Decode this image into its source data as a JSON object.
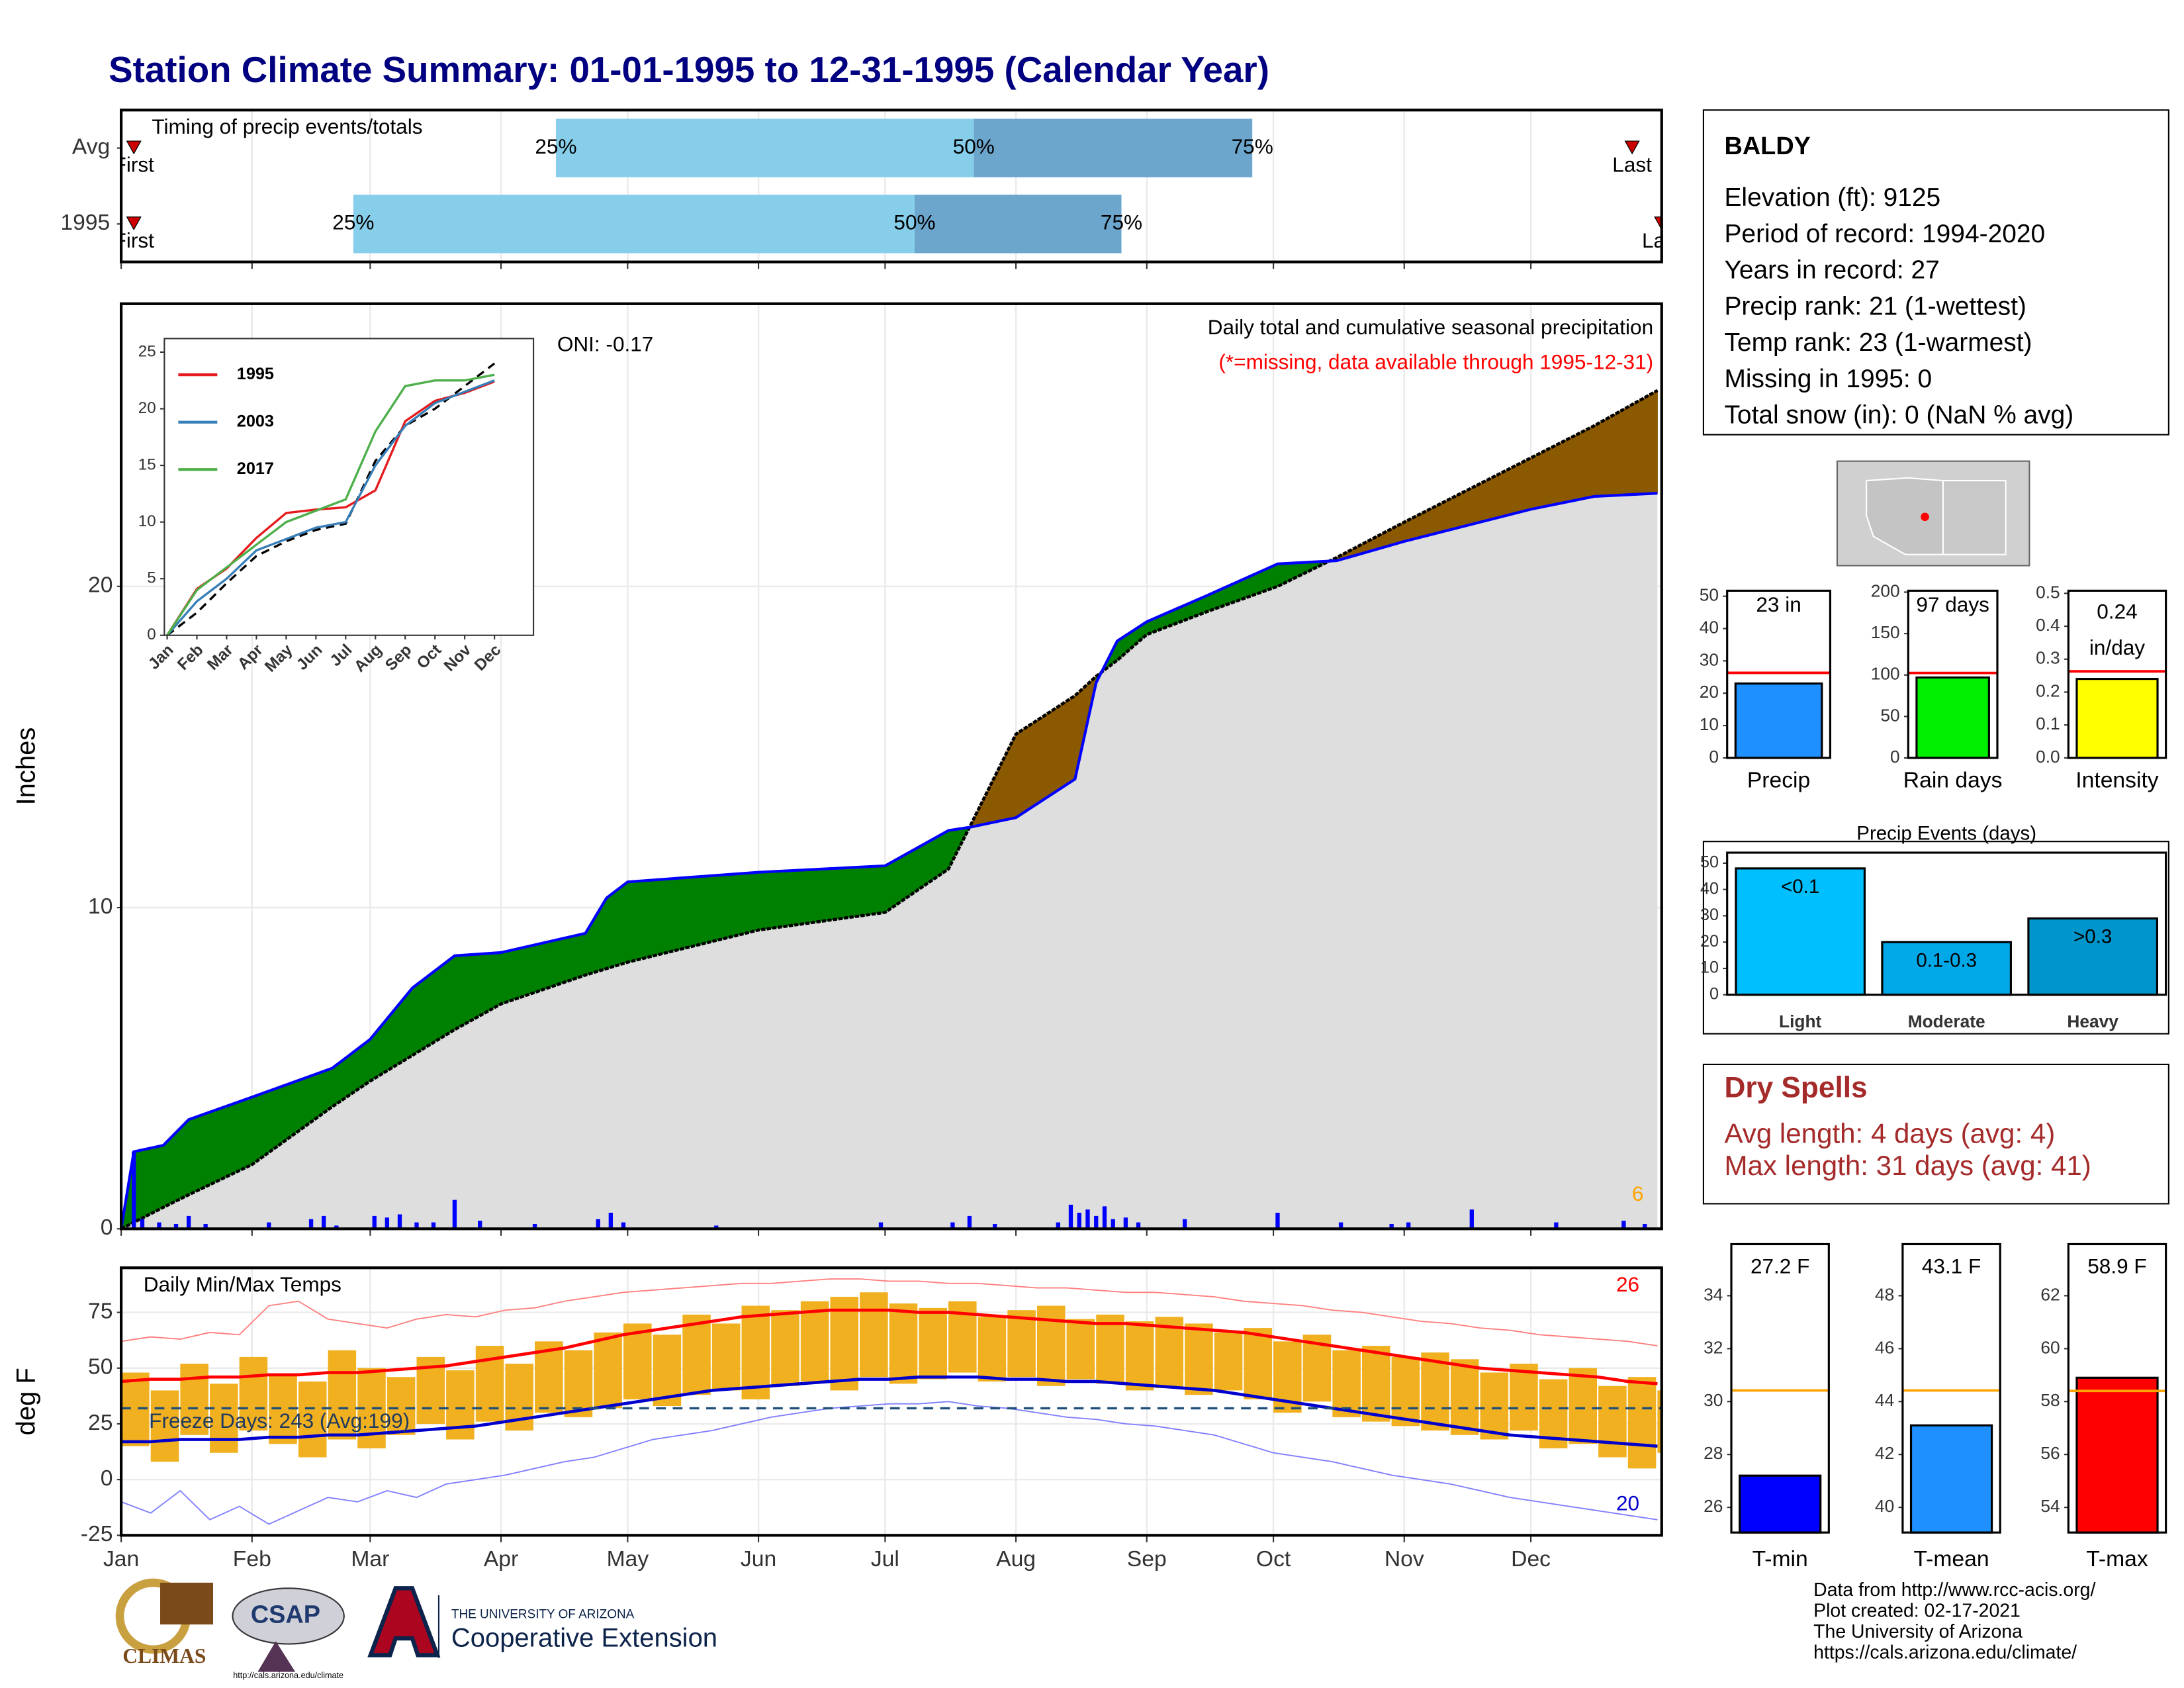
{
  "title": "Station Climate Summary: 01-01-1995 to 12-31-1995 (Calendar Year)",
  "station": {
    "name": "BALDY",
    "lines": [
      "Elevation (ft): 9125",
      "Period of record: 1994-2020",
      "Years in record: 27",
      "Precip rank: 21 (1-wettest)",
      "Temp rank: 23 (1-warmest)",
      "Missing in 1995: 0",
      "Total snow (in): 0 (NaN % avg)"
    ]
  },
  "dry_spells": {
    "title": "Dry Spells",
    "lines": [
      "Avg length: 4 days (avg: 4)",
      "Max length: 31 days (avg: 41)"
    ]
  },
  "credits": [
    "Data from http://www.rcc-acis.org/",
    "Plot created: 02-17-2021",
    "The University of Arizona",
    "https://cals.arizona.edu/climate/"
  ],
  "logos": {
    "climas": "CLIMAS",
    "csap": "CSAP",
    "csap_url": "http://cals.arizona.edu/climate",
    "university": "THE UNIVERSITY OF ARIZONA",
    "extension": "Cooperative Extension"
  },
  "chart_data": [
    {
      "type": "timeline",
      "title": "Timing of precip events/totals",
      "categories": [
        "Avg",
        "1995"
      ],
      "series": [
        {
          "name": "25%",
          "values": [
            103,
            55
          ]
        },
        {
          "name": "50%",
          "values": [
            202,
            188
          ]
        },
        {
          "name": "75%",
          "values": [
            268,
            237
          ]
        }
      ],
      "segment_colors": [
        "#87ceeb",
        "#6ca6cd"
      ],
      "first": [
        3,
        3
      ],
      "last": [
        358,
        365
      ],
      "first_label": "First",
      "last_label": "Last",
      "marker_color": "#cc0000",
      "xlim": [
        0,
        365
      ],
      "xticks": [
        0,
        31,
        59,
        90,
        120,
        151,
        181,
        212,
        243,
        273,
        304,
        334
      ]
    },
    {
      "type": "area",
      "title": "Daily total and cumulative seasonal precipitation",
      "subtitle": "(*=missing, data available through 1995-12-31)",
      "annotation": "ONI: -0.17",
      "corner_note": "6",
      "ylabel": "Inches",
      "x": [
        0,
        3,
        10,
        16,
        31,
        50,
        59,
        69,
        79,
        90,
        110,
        115,
        120,
        151,
        181,
        196,
        201,
        212,
        226,
        231,
        236,
        243,
        257,
        274,
        288,
        304,
        319,
        334,
        349,
        364
      ],
      "average": [
        0,
        0.2,
        0.67,
        1.06,
        2.0,
        3.8,
        4.6,
        5.4,
        6.2,
        7.0,
        7.9,
        8.1,
        8.3,
        9.3,
        9.85,
        11.2,
        12.5,
        15.4,
        16.6,
        17.2,
        17.7,
        18.5,
        19.2,
        20.0,
        20.9,
        22.0,
        23.0,
        24.0,
        25.0,
        26.1
      ],
      "observed": [
        0,
        2.4,
        2.6,
        3.4,
        4.1,
        5.0,
        5.9,
        7.5,
        8.5,
        8.6,
        9.2,
        10.3,
        10.8,
        11.1,
        11.3,
        12.4,
        12.5,
        12.8,
        14.0,
        17.0,
        18.3,
        18.9,
        19.7,
        20.7,
        20.8,
        21.4,
        21.9,
        22.4,
        22.8,
        22.9
      ],
      "daily_x": [
        3,
        5,
        9,
        13,
        16,
        20,
        35,
        45,
        48,
        51,
        60,
        63,
        66,
        70,
        74,
        79,
        85,
        98,
        113,
        116,
        119,
        141,
        180,
        197,
        201,
        207,
        222,
        225,
        227,
        229,
        231,
        233,
        235,
        238,
        241,
        252,
        274,
        289,
        301,
        305,
        320,
        340,
        356,
        361
      ],
      "daily": [
        2.4,
        0.3,
        0.2,
        0.15,
        0.4,
        0.15,
        0.2,
        0.3,
        0.4,
        0.1,
        0.4,
        0.35,
        0.45,
        0.2,
        0.2,
        0.9,
        0.25,
        0.15,
        0.3,
        0.5,
        0.2,
        0.1,
        0.2,
        0.2,
        0.4,
        0.15,
        0.2,
        0.75,
        0.5,
        0.6,
        0.4,
        0.7,
        0.3,
        0.35,
        0.2,
        0.3,
        0.5,
        0.2,
        0.15,
        0.2,
        0.6,
        0.2,
        0.25,
        0.15
      ],
      "average_fill": "#dedede",
      "above_color": "#008000",
      "below_color": "#8b5a00",
      "observed_color": "#0000ff",
      "daily_color": "#0000ff",
      "note_color": "#ffa500",
      "subtitle_color": "#ff0000",
      "xlim": [
        0,
        365
      ],
      "xticks": [
        0,
        31,
        59,
        90,
        120,
        151,
        181,
        212,
        243,
        273,
        304,
        334
      ],
      "ylim": [
        0,
        28.8
      ],
      "yticks": [
        0,
        10,
        20
      ],
      "grid": true
    },
    {
      "type": "line",
      "categories": [
        "Jan",
        "Feb",
        "Mar",
        "Apr",
        "May",
        "Jun",
        "Jul",
        "Aug",
        "Sep",
        "Oct",
        "Nov",
        "Dec"
      ],
      "series": [
        {
          "name": "1995",
          "color": "#e41a1c",
          "values": [
            0,
            4.1,
            5.9,
            8.6,
            10.8,
            11.1,
            11.3,
            12.8,
            18.9,
            20.7,
            21.4,
            22.4
          ]
        },
        {
          "name": "2003",
          "color": "#377eb8",
          "values": [
            0,
            3,
            5,
            7.5,
            8.5,
            9.5,
            10,
            15,
            18.5,
            20.5,
            21.5,
            22.5
          ]
        },
        {
          "name": "2017",
          "color": "#4daf4a",
          "values": [
            0,
            4,
            6,
            8,
            10,
            11,
            12,
            18,
            22,
            22.5,
            22.5,
            23
          ]
        }
      ],
      "average": [
        0,
        2,
        4.6,
        7,
        8.3,
        9.3,
        9.85,
        15.4,
        18.5,
        20,
        22,
        24
      ],
      "ylim": [
        0,
        26.2
      ],
      "yticks": [
        0,
        5,
        10,
        15,
        20,
        25
      ]
    },
    {
      "type": "bar",
      "categories": [
        "Precip"
      ],
      "values": [
        23
      ],
      "value_labels": [
        "23 in"
      ],
      "colors": [
        "#1e90ff"
      ],
      "avg": 26.3,
      "avg_color": "#ff0000",
      "ylim": [
        0,
        51.7
      ],
      "yticks": [
        0,
        10,
        20,
        30,
        40,
        50
      ]
    },
    {
      "type": "bar",
      "categories": [
        "Rain days"
      ],
      "values": [
        97
      ],
      "value_labels": [
        "97 days"
      ],
      "colors": [
        "#00ee00"
      ],
      "avg": 102.5,
      "avg_color": "#ff0000",
      "ylim": [
        0,
        201.7
      ],
      "yticks": [
        0,
        50,
        100,
        150,
        200
      ]
    },
    {
      "type": "bar",
      "categories": [
        "Intensity"
      ],
      "values": [
        0.24
      ],
      "value_labels": [
        "0.24"
      ],
      "unit": "in/day",
      "colors": [
        "#ffff00"
      ],
      "avg": 0.263,
      "avg_color": "#ff0000",
      "ylim": [
        0,
        0.508
      ],
      "yticks": [
        {
          "value": 0,
          "label": "0.0"
        },
        0.1,
        0.2,
        0.3,
        0.4,
        0.5
      ]
    },
    {
      "type": "bar",
      "title": "Precip Events (days)",
      "categories": [
        "Light",
        "Moderate",
        "Heavy"
      ],
      "values": [
        48,
        20,
        29
      ],
      "bin_labels": [
        "<0.1",
        "0.1-0.3",
        ">0.3"
      ],
      "colors": [
        "#00bfff",
        "#00a8e8",
        "#0096cc"
      ],
      "ylim": [
        0,
        54
      ],
      "yticks": [
        0,
        10,
        20,
        30,
        40,
        50
      ]
    },
    {
      "type": "range",
      "title": "Daily Min/Max Temps",
      "ylabel": "deg F",
      "freeze_label": "Freeze Days: 243 (Avg:199)",
      "hi_note": "26",
      "lo_note": "20",
      "x": [
        0,
        7,
        14,
        21,
        28,
        35,
        42,
        49,
        56,
        63,
        70,
        77,
        84,
        91,
        98,
        105,
        112,
        119,
        126,
        133,
        140,
        147,
        154,
        161,
        168,
        175,
        182,
        189,
        196,
        203,
        210,
        217,
        224,
        231,
        238,
        245,
        252,
        259,
        266,
        273,
        280,
        287,
        294,
        301,
        308,
        315,
        322,
        329,
        336,
        343,
        350,
        357,
        364
      ],
      "max": [
        48,
        40,
        52,
        43,
        55,
        47,
        44,
        58,
        50,
        46,
        55,
        49,
        60,
        52,
        62,
        58,
        66,
        70,
        65,
        74,
        70,
        78,
        76,
        80,
        82,
        84,
        79,
        77,
        80,
        73,
        76,
        78,
        72,
        74,
        71,
        73,
        70,
        66,
        68,
        62,
        65,
        58,
        60,
        55,
        57,
        54,
        48,
        52,
        45,
        50,
        42,
        46,
        40
      ],
      "min": [
        15,
        8,
        20,
        12,
        22,
        16,
        10,
        18,
        14,
        20,
        25,
        18,
        26,
        22,
        30,
        28,
        32,
        36,
        33,
        38,
        40,
        36,
        42,
        44,
        40,
        46,
        43,
        45,
        48,
        44,
        46,
        42,
        45,
        43,
        40,
        41,
        38,
        40,
        36,
        30,
        35,
        28,
        26,
        24,
        22,
        20,
        18,
        22,
        14,
        16,
        10,
        5,
        12
      ],
      "norm_max": [
        44,
        45,
        45,
        46,
        46,
        47,
        47,
        48,
        48,
        49,
        50,
        51,
        53,
        55,
        57,
        59,
        62,
        65,
        67,
        69,
        71,
        73,
        74,
        75,
        76,
        76,
        76,
        75,
        75,
        74,
        73,
        72,
        71,
        70,
        70,
        69,
        68,
        67,
        66,
        64,
        62,
        60,
        58,
        56,
        54,
        52,
        50,
        49,
        48,
        47,
        46,
        44,
        43
      ],
      "norm_min": [
        17,
        17,
        18,
        18,
        18,
        19,
        19,
        20,
        20,
        21,
        22,
        23,
        24,
        26,
        28,
        30,
        32,
        34,
        36,
        38,
        40,
        41,
        42,
        43,
        44,
        45,
        45,
        46,
        46,
        46,
        45,
        45,
        44,
        44,
        43,
        42,
        41,
        40,
        38,
        36,
        34,
        32,
        30,
        28,
        26,
        24,
        22,
        20,
        19,
        18,
        17,
        16,
        15
      ],
      "rec_hi": [
        62,
        64,
        63,
        66,
        65,
        78,
        80,
        72,
        70,
        68,
        72,
        74,
        73,
        76,
        77,
        80,
        82,
        84,
        85,
        86,
        87,
        88,
        88,
        89,
        90,
        90,
        89,
        89,
        88,
        88,
        87,
        86,
        86,
        85,
        84,
        84,
        83,
        82,
        80,
        79,
        78,
        76,
        75,
        73,
        71,
        70,
        68,
        67,
        65,
        64,
        63,
        62,
        60
      ],
      "rec_lo": [
        -10,
        -15,
        -5,
        -18,
        -12,
        -20,
        -14,
        -8,
        -10,
        -5,
        -8,
        -2,
        0,
        2,
        5,
        8,
        10,
        14,
        18,
        20,
        22,
        25,
        28,
        30,
        32,
        33,
        34,
        34,
        35,
        33,
        32,
        30,
        28,
        27,
        25,
        24,
        22,
        20,
        16,
        12,
        10,
        8,
        5,
        2,
        0,
        -2,
        -5,
        -8,
        -10,
        -12,
        -14,
        -16,
        -18
      ],
      "freeze": 32,
      "bar_color": "#f0b020",
      "max_color": "#ff0000",
      "min_color": "#0000cd",
      "rec_hi_color": "#ff8080",
      "rec_lo_color": "#8080ff",
      "freeze_color": "#1f4e79",
      "xlim": [
        0,
        365
      ],
      "xticks": [
        {
          "value": 0,
          "label": "Jan"
        },
        {
          "value": 31,
          "label": "Feb"
        },
        {
          "value": 59,
          "label": "Mar"
        },
        {
          "value": 90,
          "label": "Apr"
        },
        {
          "value": 120,
          "label": "May"
        },
        {
          "value": 151,
          "label": "Jun"
        },
        {
          "value": 181,
          "label": "Jul"
        },
        {
          "value": 212,
          "label": "Aug"
        },
        {
          "value": 243,
          "label": "Sep"
        },
        {
          "value": 273,
          "label": "Oct"
        },
        {
          "value": 304,
          "label": "Nov"
        },
        {
          "value": 334,
          "label": "Dec"
        }
      ],
      "ylim": [
        -25,
        95
      ],
      "yticks": [
        -25,
        0,
        25,
        50,
        75
      ],
      "grid": true
    },
    {
      "type": "bar",
      "categories": [
        "T-min"
      ],
      "values": [
        27.2
      ],
      "value_labels": [
        "27.2 F"
      ],
      "colors": [
        "#0000ff"
      ],
      "avg": 30.42,
      "avg_color": "#ffa500",
      "ylim": [
        25.05,
        35.95
      ],
      "yticks": [
        26,
        28,
        30,
        32,
        34
      ]
    },
    {
      "type": "bar",
      "categories": [
        "T-mean"
      ],
      "values": [
        43.1
      ],
      "value_labels": [
        "43.1 F"
      ],
      "colors": [
        "#1e90ff"
      ],
      "avg": 44.42,
      "avg_color": "#ffa500",
      "ylim": [
        39.05,
        49.95
      ],
      "yticks": [
        40,
        42,
        44,
        46,
        48
      ]
    },
    {
      "type": "bar",
      "categories": [
        "T-max"
      ],
      "values": [
        58.9
      ],
      "value_labels": [
        "58.9 F"
      ],
      "colors": [
        "#ff0000"
      ],
      "avg": 58.4,
      "avg_color": "#ffa500",
      "ylim": [
        53.05,
        63.95
      ],
      "yticks": [
        54,
        56,
        58,
        60,
        62
      ]
    }
  ]
}
